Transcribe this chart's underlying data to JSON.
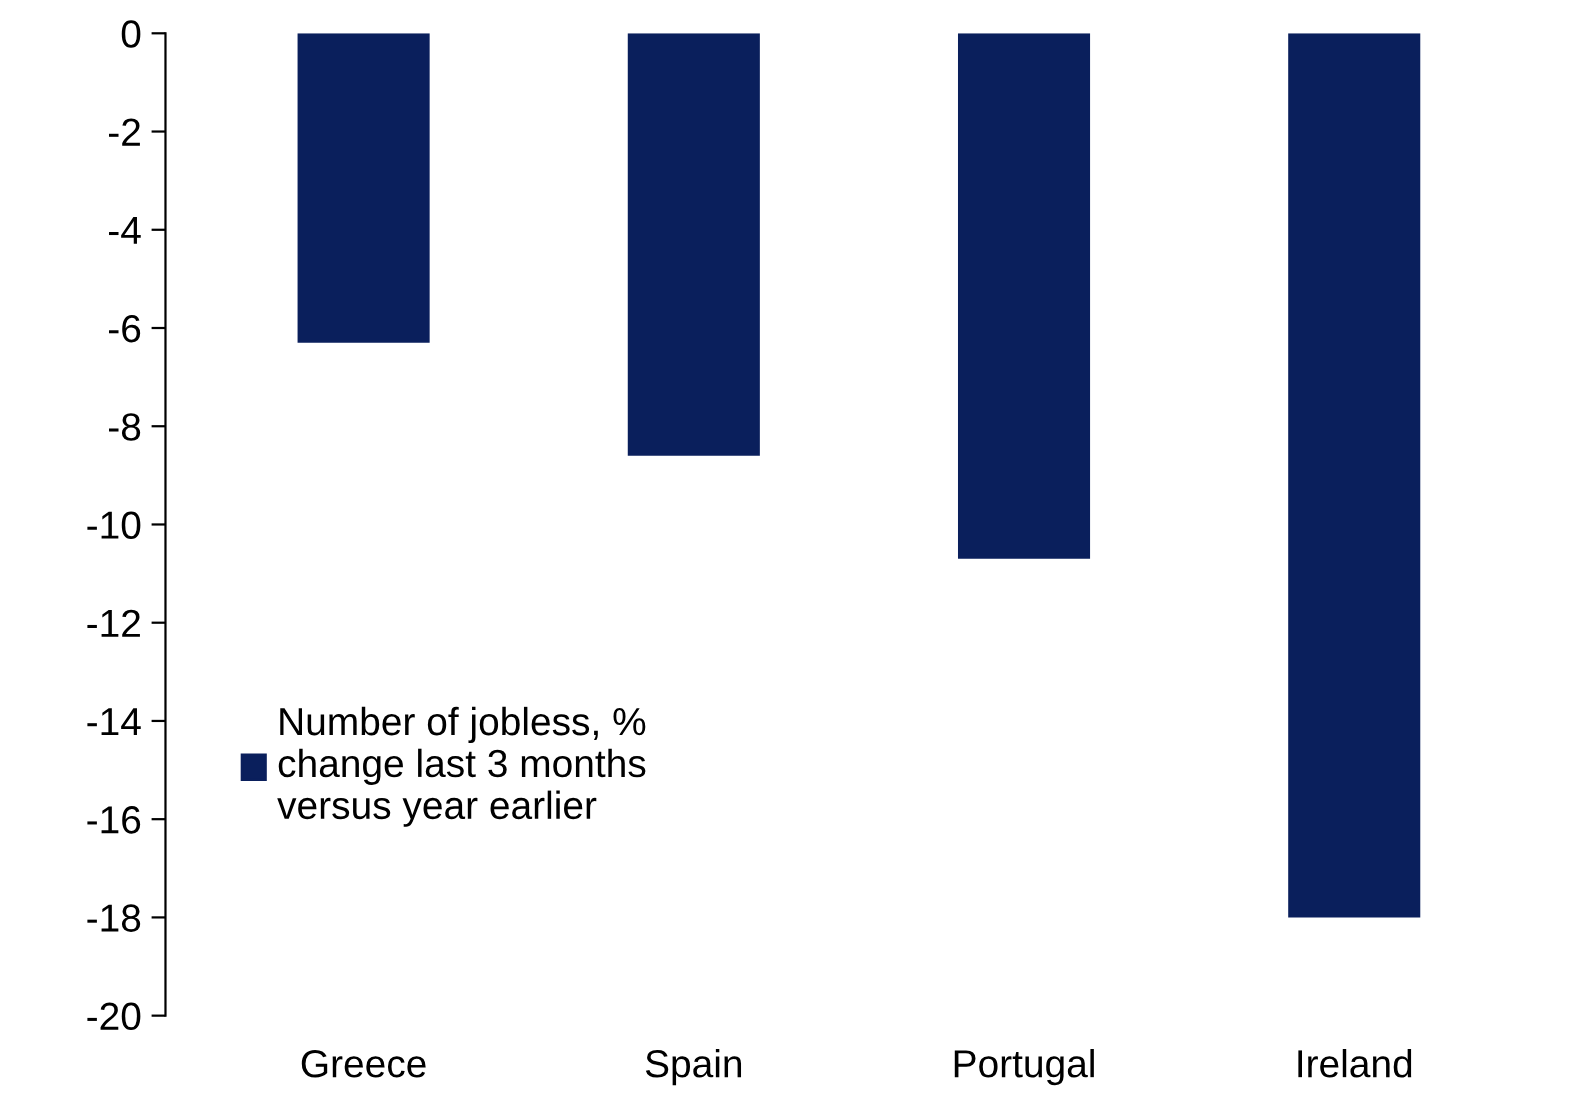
{
  "chart_data": {
    "type": "bar",
    "categories": [
      "Greece",
      "Spain",
      "Portugal",
      "Ireland"
    ],
    "series": [
      {
        "name": "Number of jobless, % change last 3 months versus year earlier",
        "color": "#0a1f5c",
        "values": [
          -6.3,
          -8.6,
          -10.7,
          -18.0
        ]
      }
    ],
    "ylim": [
      -20,
      0
    ],
    "yticks": [
      0,
      -2,
      -4,
      -6,
      -8,
      -10,
      -12,
      -14,
      -16,
      -18,
      -20
    ],
    "grid": false,
    "legend": "left"
  }
}
